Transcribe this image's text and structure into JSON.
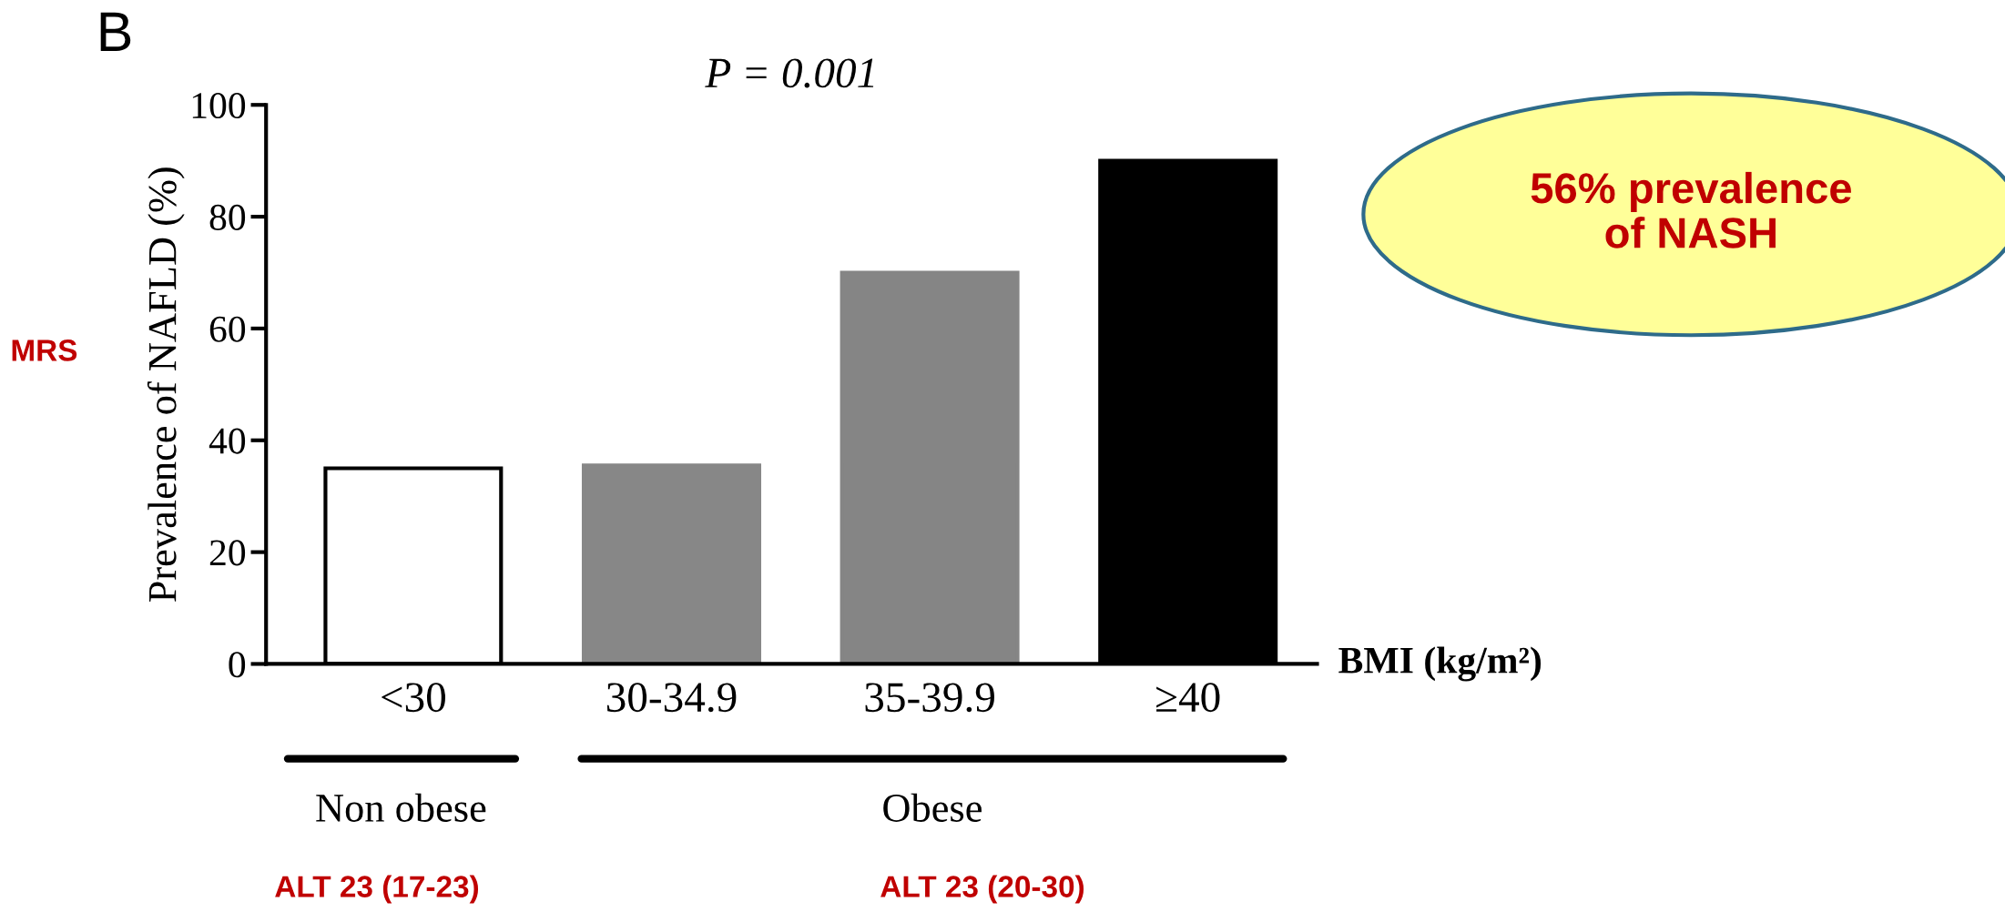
{
  "chart_data": {
    "type": "bar",
    "title": "P = 0.001",
    "ylabel": "Prevalence of NAFLD (%)",
    "xlabel": "BMI (kg/m²)",
    "categories": [
      "<30",
      "30-34.9",
      "35-39.9",
      "≥40"
    ],
    "values": [
      35,
      35.5,
      70,
      90
    ],
    "colors": [
      "#ffffff",
      "#878787",
      "#858585",
      "#000000"
    ],
    "ylim": [
      0,
      100
    ],
    "yticks": [
      0,
      20,
      40,
      60,
      80,
      100
    ],
    "grid": false,
    "legend": false,
    "annotations": [
      "B",
      "MRS",
      "56% prevalence of NASH",
      "Non obese",
      "Obese",
      "ALT 23 (17-23)",
      "ALT 23 (20-30)"
    ]
  }
}
